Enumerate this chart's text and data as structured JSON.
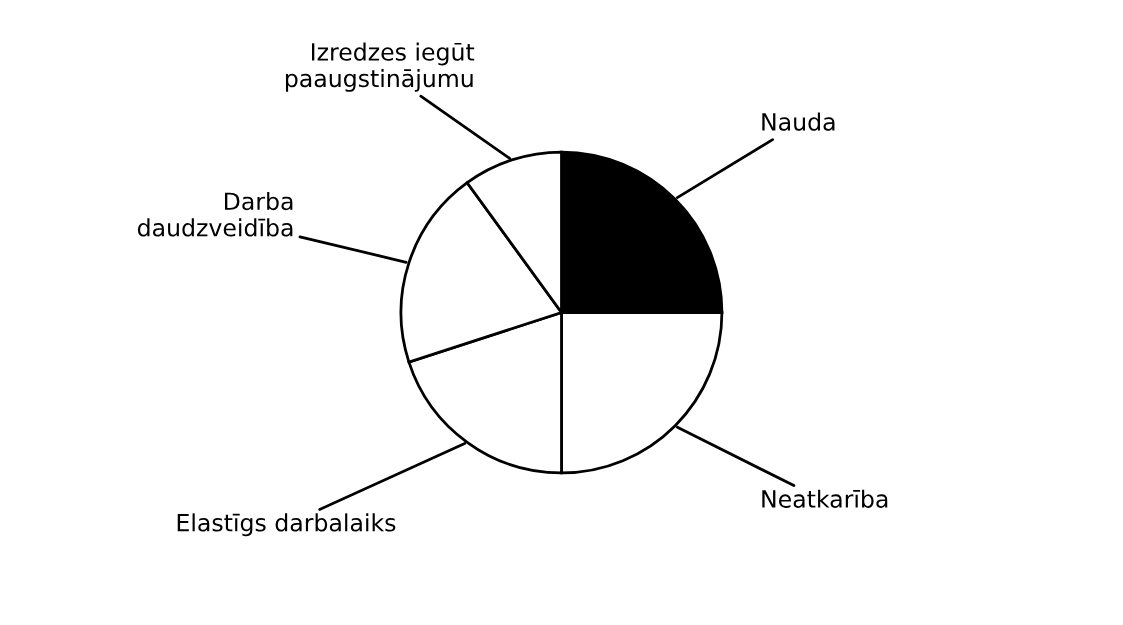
{
  "chart_data": {
    "type": "pie",
    "categories": [
      "Nauda",
      "Neatkarība",
      "Elastīgs darbalaiks",
      "Darba\ndaudzveidība",
      "Izredzes iegūt\npaaugstinājumu"
    ],
    "values": [
      25,
      25,
      20,
      20,
      10
    ],
    "colors": [
      "#000000",
      "#ffffff",
      "#ffffff",
      "#ffffff",
      "#ffffff"
    ],
    "legend": false
  }
}
